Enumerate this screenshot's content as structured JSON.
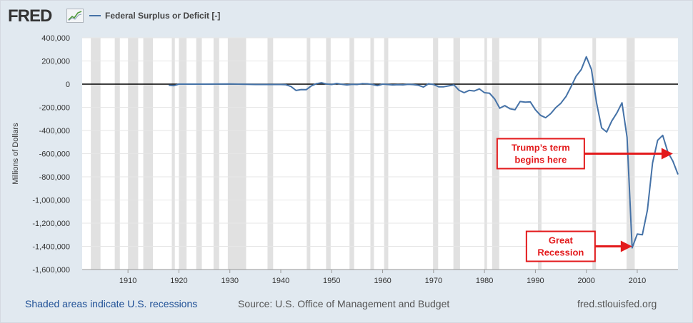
{
  "header": {
    "logo_text": "FRED",
    "legend_label": "Federal Surplus or Deficit [-]"
  },
  "footer": {
    "recession_note": "Shaded areas indicate U.S. recessions",
    "source": "Source: U.S. Office of Management and Budget",
    "site": "fred.stlouisfed.org"
  },
  "colors": {
    "series": "#4572a7",
    "annotation": "#e31a1c",
    "recession": "#e1e1e1",
    "zero_line": "#000000"
  },
  "chart_data": {
    "type": "line",
    "title": "",
    "ylabel": "Millions of Dollars",
    "xlabel": "",
    "xlim": [
      1901,
      2018
    ],
    "ylim": [
      -1600000,
      400000
    ],
    "x_ticks": [
      1910,
      1920,
      1930,
      1940,
      1950,
      1960,
      1970,
      1980,
      1990,
      2000,
      2010
    ],
    "y_ticks": [
      {
        "value": 400000,
        "label": "400,000"
      },
      {
        "value": 200000,
        "label": "200,000"
      },
      {
        "value": 0,
        "label": "0"
      },
      {
        "value": -200000,
        "label": "-200,000"
      },
      {
        "value": -400000,
        "label": "-400,000"
      },
      {
        "value": -600000,
        "label": "-600,000"
      },
      {
        "value": -800000,
        "label": "-800,000"
      },
      {
        "value": -1000000,
        "label": "-1,000,000"
      },
      {
        "value": -1200000,
        "label": "-1,200,000"
      },
      {
        "value": -1400000,
        "label": "-1,400,000"
      },
      {
        "value": -1600000,
        "label": "-1,600,000"
      }
    ],
    "recessions": [
      [
        1902.7,
        1904.6
      ],
      [
        1907.4,
        1908.4
      ],
      [
        1910.0,
        1912.0
      ],
      [
        1913.0,
        1914.9
      ],
      [
        1918.6,
        1919.2
      ],
      [
        1920.0,
        1921.5
      ],
      [
        1923.4,
        1924.5
      ],
      [
        1926.8,
        1927.9
      ],
      [
        1929.6,
        1933.2
      ],
      [
        1937.4,
        1938.5
      ],
      [
        1945.1,
        1945.8
      ],
      [
        1948.9,
        1949.8
      ],
      [
        1953.5,
        1954.4
      ],
      [
        1957.6,
        1958.3
      ],
      [
        1960.3,
        1961.1
      ],
      [
        1969.9,
        1970.9
      ],
      [
        1973.9,
        1975.2
      ],
      [
        1980.0,
        1980.5
      ],
      [
        1981.5,
        1982.9
      ],
      [
        1990.5,
        1991.2
      ],
      [
        2001.2,
        2001.9
      ],
      [
        2007.9,
        2009.5
      ]
    ],
    "series": [
      {
        "x": [
          1918,
          1919,
          1920,
          1925,
          1930,
          1935,
          1940,
          1941,
          1942,
          1943,
          1944,
          1945,
          1946,
          1947,
          1948,
          1949,
          1950,
          1951,
          1952,
          1953,
          1954,
          1955,
          1956,
          1957,
          1958,
          1959,
          1960,
          1961,
          1962,
          1963,
          1964,
          1965,
          1966,
          1967,
          1968,
          1969,
          1970,
          1971,
          1972,
          1973,
          1974,
          1975,
          1976,
          1977,
          1978,
          1979,
          1980,
          1981,
          1982,
          1983,
          1984,
          1985,
          1986,
          1987,
          1988,
          1989,
          1990,
          1991,
          1992,
          1993,
          1994,
          1995,
          1996,
          1997,
          1998,
          1999,
          2000,
          2001,
          2002,
          2003,
          2004,
          2005,
          2006,
          2007,
          2008,
          2009,
          2010,
          2011,
          2012,
          2013,
          2014,
          2015,
          2016,
          2017,
          2018
        ],
        "values": [
          -9000,
          -13000,
          0,
          0,
          1000,
          -3000,
          -3000,
          -5000,
          -20000,
          -55000,
          -47000,
          -48000,
          -15000,
          4000,
          12000,
          1000,
          -3000,
          6000,
          -2000,
          -7000,
          -1000,
          -3000,
          4000,
          3000,
          -3000,
          -13000,
          0,
          -3000,
          -7000,
          -5000,
          -6000,
          -1000,
          -4000,
          -9000,
          -25000,
          3000,
          -3000,
          -23000,
          -23000,
          -15000,
          -6000,
          -53000,
          -74000,
          -54000,
          -59000,
          -41000,
          -74000,
          -79000,
          -128000,
          -208000,
          -185000,
          -212000,
          -221000,
          -150000,
          -155000,
          -153000,
          -221000,
          -269000,
          -290000,
          -255000,
          -203000,
          -164000,
          -107000,
          -22000,
          69000,
          126000,
          236000,
          128000,
          -158000,
          -378000,
          -413000,
          -318000,
          -248000,
          -161000,
          -459000,
          -1413000,
          -1294000,
          -1300000,
          -1087000,
          -680000,
          -485000,
          -442000,
          -585000,
          -665000,
          -779000
        ]
      }
    ],
    "annotations": [
      {
        "text": [
          "Trump’s term",
          "begins here"
        ],
        "target_x": 2017,
        "target_y": -600000
      },
      {
        "text": [
          "Great",
          "Recession"
        ],
        "target_x": 2009,
        "target_y": -1400000
      }
    ]
  }
}
